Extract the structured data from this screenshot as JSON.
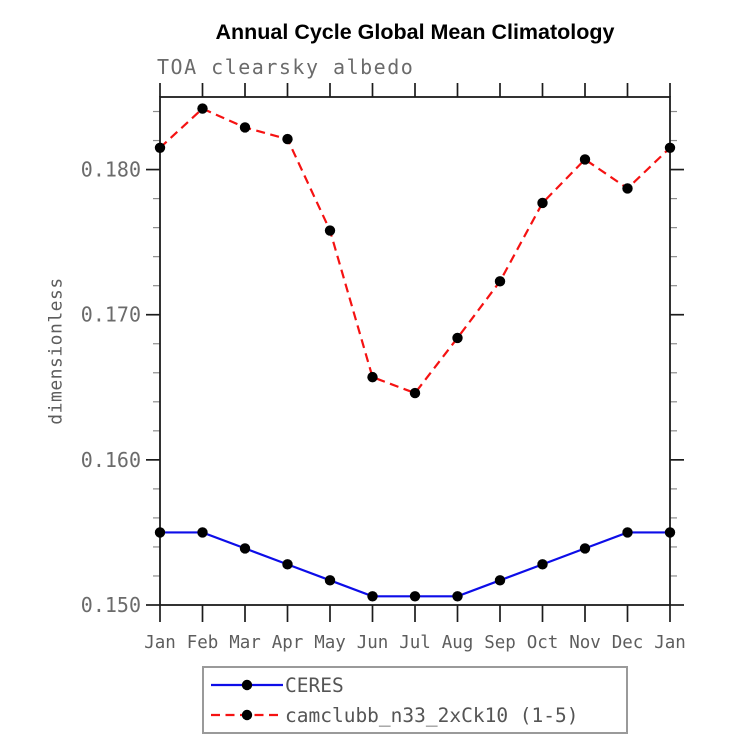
{
  "header": {
    "title": "Annual Cycle Global Mean Climatology",
    "subtitle": "TOA clearsky albedo"
  },
  "colors": {
    "ceres_line": "#0d0de8",
    "model_line": "#f51212",
    "marker": "#000000",
    "axis": "#1c1c1c",
    "minor_tick": "#8c8c8c",
    "label_text": "#5d5d5d"
  },
  "chart_data": {
    "type": "line",
    "title": "Annual Cycle Global Mean Climatology",
    "subtitle": "TOA clearsky albedo",
    "xlabel": "",
    "ylabel": "dimensionless",
    "x_tick_labels": [
      "Jan",
      "Feb",
      "Mar",
      "Apr",
      "May",
      "Jun",
      "Jul",
      "Aug",
      "Sep",
      "Oct",
      "Nov",
      "Dec",
      "Jan"
    ],
    "y_ticks": [
      0.15,
      0.16,
      0.17,
      0.18
    ],
    "y_tick_labels": [
      "0.150",
      "0.160",
      "0.170",
      "0.180"
    ],
    "ylim": [
      0.15,
      0.185
    ],
    "y_minor_step": 0.002,
    "grid": false,
    "legend_position": "bottom-center",
    "series": [
      {
        "name": "CERES",
        "style": "solid",
        "color": "#0d0de8",
        "marker": "black-dot",
        "values": [
          0.155,
          0.155,
          0.1539,
          0.1528,
          0.1517,
          0.1506,
          0.1506,
          0.1506,
          0.1517,
          0.1528,
          0.1539,
          0.155,
          0.155
        ]
      },
      {
        "name": "camclubb_n33_2xCk10 (1-5)",
        "style": "dashed",
        "color": "#f51212",
        "marker": "black-dot",
        "values": [
          0.1815,
          0.1842,
          0.1829,
          0.1821,
          0.1758,
          0.1657,
          0.1646,
          0.1684,
          0.1723,
          0.1777,
          0.1807,
          0.1787,
          0.1815
        ]
      }
    ]
  }
}
